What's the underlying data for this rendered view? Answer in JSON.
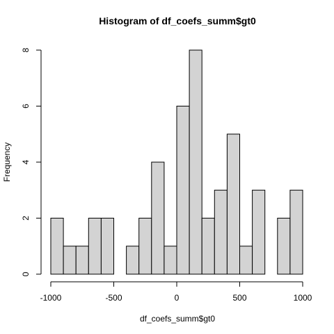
{
  "chart_data": {
    "type": "bar",
    "title": "Histogram of df_coefs_summ$gt0",
    "xlabel": "df_coefs_summ$gt0",
    "ylabel": "Frequency",
    "bin_edges": [
      -1000,
      -900,
      -800,
      -700,
      -600,
      -500,
      -400,
      -300,
      -200,
      -100,
      0,
      100,
      200,
      300,
      400,
      500,
      600,
      700,
      800,
      900,
      1000
    ],
    "values": [
      2,
      1,
      1,
      2,
      2,
      0,
      1,
      2,
      4,
      1,
      6,
      8,
      2,
      3,
      5,
      1,
      3,
      0,
      2,
      3
    ],
    "xlim": [
      -1000,
      1000
    ],
    "ylim": [
      0,
      8
    ],
    "x_ticks": [
      -1000,
      -500,
      0,
      500,
      1000
    ],
    "y_ticks": [
      0,
      2,
      4,
      6,
      8
    ],
    "x_tick_labels": [
      "-1000",
      "-500",
      "0",
      "500",
      "1000"
    ],
    "y_tick_labels": [
      "0",
      "2",
      "4",
      "6",
      "8"
    ],
    "grid": false
  }
}
